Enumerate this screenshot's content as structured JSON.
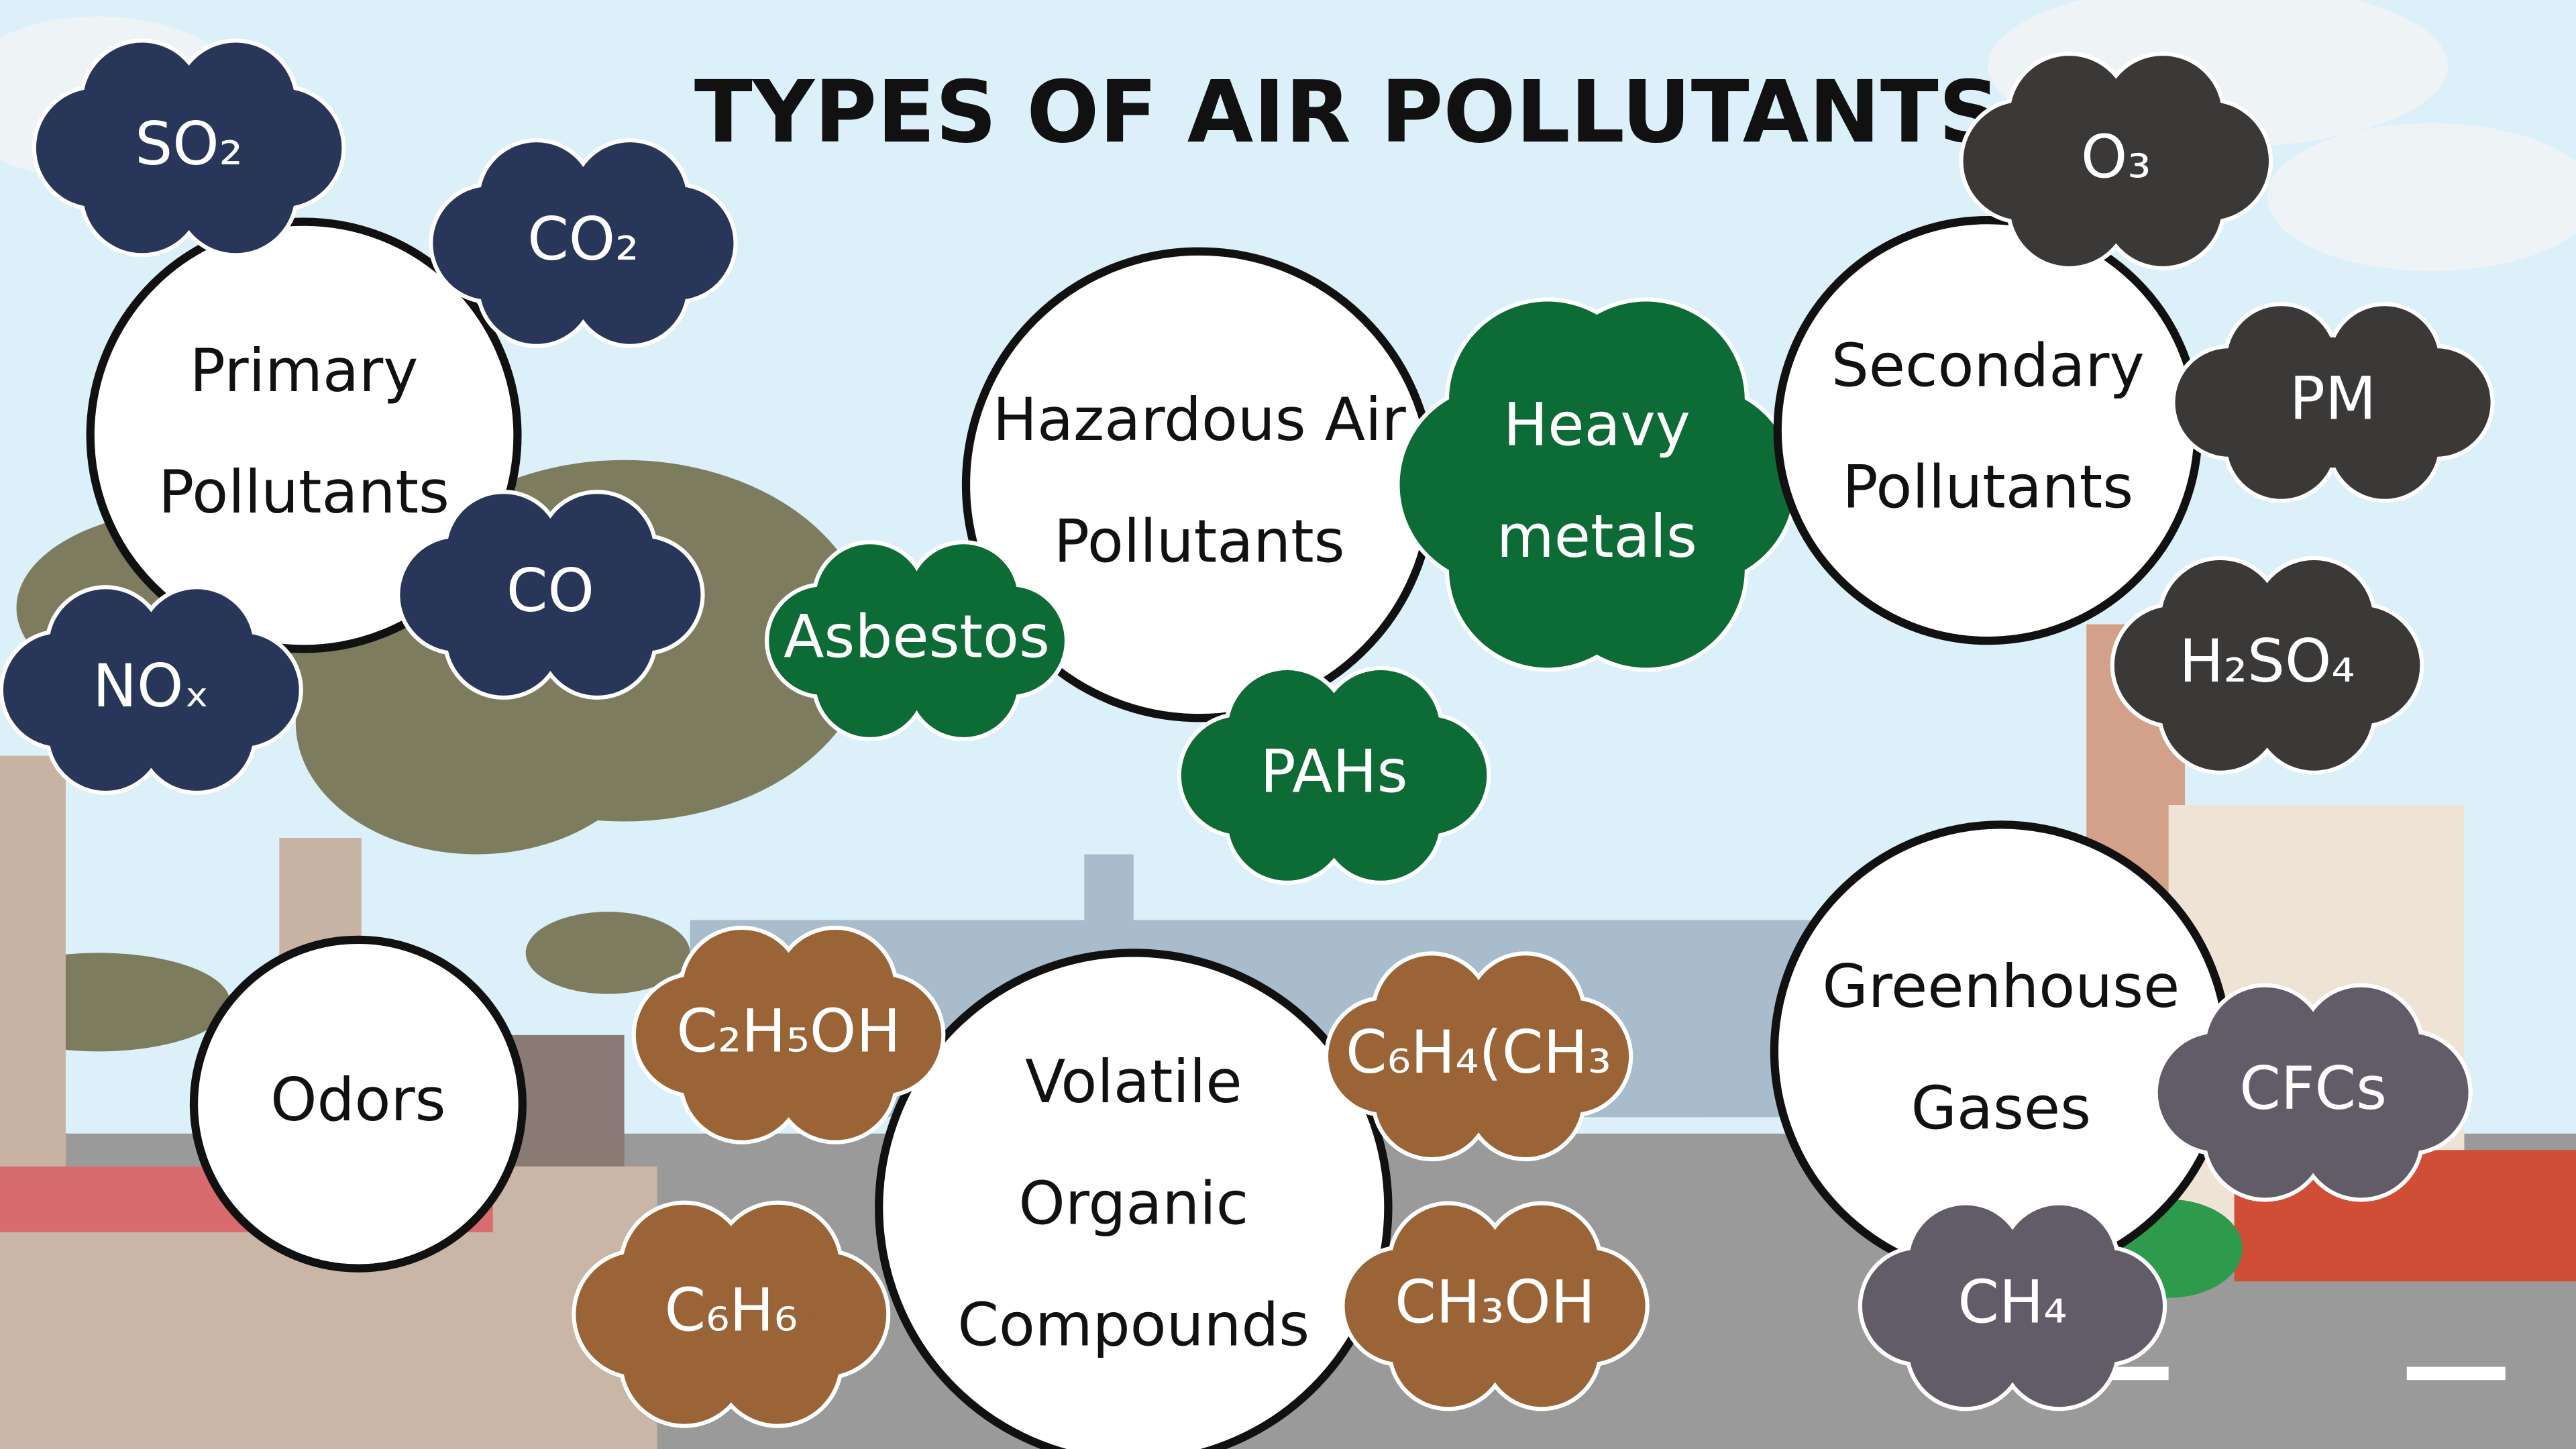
{
  "title": "TYPES OF AIR POLLUTANTS",
  "groups": [
    {
      "label": [
        "Primary",
        "Pollutants"
      ],
      "color": "#283759",
      "items": [
        [
          "SO₂"
        ],
        [
          "CO₂"
        ],
        [
          "CO"
        ],
        [
          "NOₓ"
        ]
      ]
    },
    {
      "label": [
        "Hazardous Air",
        "Pollutants"
      ],
      "color": "#0d6b36",
      "items": [
        [
          "Asbestos"
        ],
        [
          "Heavy",
          "metals"
        ],
        [
          "PAHs"
        ]
      ]
    },
    {
      "label": [
        "Secondary",
        "Pollutants"
      ],
      "color": "#3b3938",
      "items": [
        [
          "O₃"
        ],
        [
          "PM"
        ],
        [
          "H₂SO₄"
        ]
      ]
    },
    {
      "label": [
        "Odors"
      ],
      "color": "#283759",
      "items": []
    },
    {
      "label": [
        "Volatile",
        "Organic",
        "Compounds"
      ],
      "color": "#9a6436",
      "items": [
        [
          "C₂H₅OH"
        ],
        [
          "C₆H₄(CH₃"
        ],
        [
          "C₆H₆"
        ],
        [
          "CH₃OH"
        ]
      ]
    },
    {
      "label": [
        "Greenhouse",
        "Gases"
      ],
      "color": "#625c69",
      "items": [
        [
          "CFCs"
        ],
        [
          "CH₄"
        ]
      ]
    }
  ]
}
